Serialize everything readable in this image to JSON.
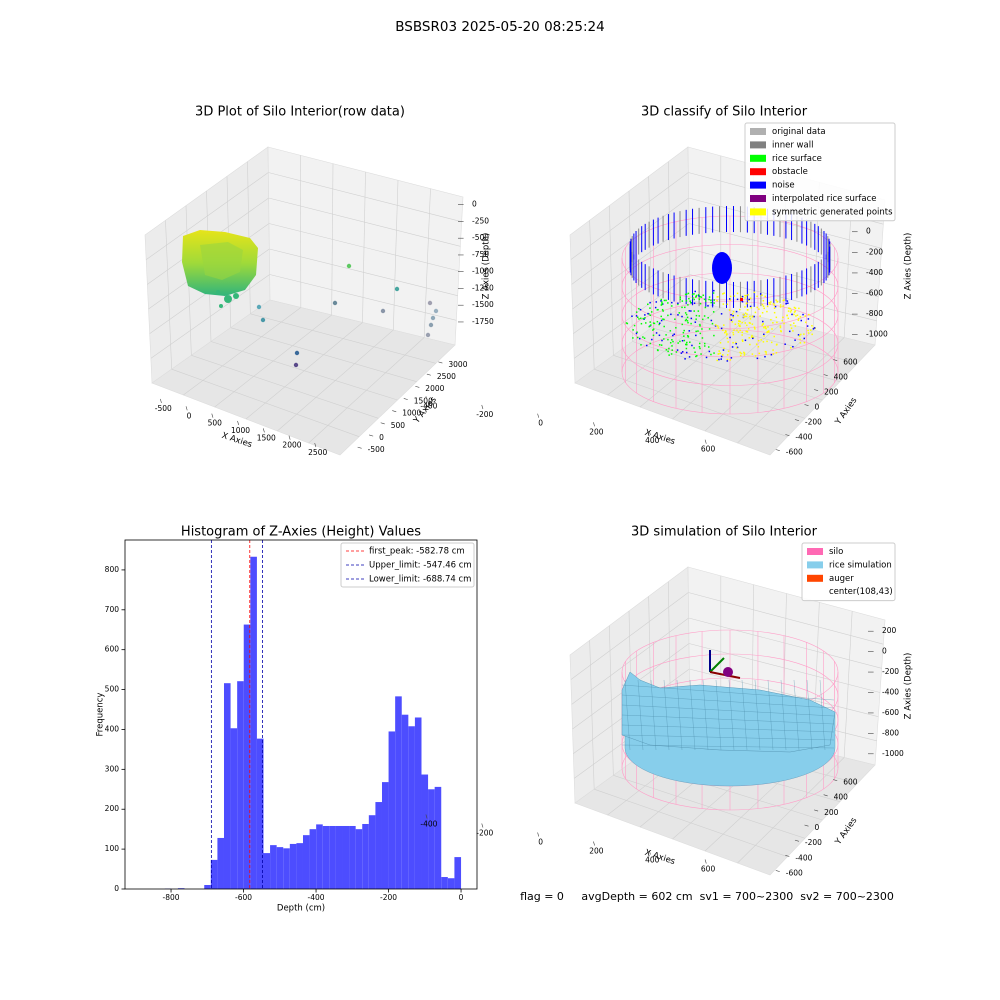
{
  "title": "BSBSR03 2025-05-20 08:25:24",
  "footer": "flag = 0     avgDepth = 602 cm  sv1 = 700~2300  sv2 = 700~2300",
  "chart_data": [
    {
      "type": "scatter3d",
      "title": "3D Plot of Silo Interior(row data)",
      "xlabel": "X Axies",
      "ylabel": "Y Axies",
      "zlabel": "Z Axies (Depth)",
      "xlim": [
        -700,
        2700
      ],
      "ylim": [
        -700,
        3200
      ],
      "zlim": [
        -1900,
        100
      ],
      "xticks": [
        -500,
        0,
        500,
        1000,
        1500,
        2000,
        2500
      ],
      "yticks": [
        -500,
        0,
        500,
        1000,
        1500,
        2000,
        2500,
        3000
      ],
      "zticks": [
        0,
        -250,
        -500,
        -750,
        -1000,
        -1250,
        -1500,
        -1750
      ]
    },
    {
      "type": "scatter3d",
      "title": "3D classify of Silo Interior",
      "xlabel": "X Axies",
      "ylabel": "Y Axies",
      "zlabel": "Z Axies (Depth)",
      "xlim": [
        -500,
        700
      ],
      "ylim": [
        -700,
        700
      ],
      "zlim": [
        -1100,
        250
      ],
      "xticks": [
        -400,
        -200,
        0,
        200,
        400,
        600
      ],
      "yticks": [
        -600,
        -400,
        -200,
        0,
        200,
        400,
        600
      ],
      "zticks": [
        0,
        -200,
        -400,
        -600,
        -800,
        -1000
      ],
      "legend": "upper right",
      "series": [
        {
          "name": "original data",
          "color": "#b0b0b0"
        },
        {
          "name": "inner wall",
          "color": "#808080"
        },
        {
          "name": "rice surface",
          "color": "#00ff00"
        },
        {
          "name": "obstacle",
          "color": "#ff0000"
        },
        {
          "name": "noise",
          "color": "#0000ff"
        },
        {
          "name": "interpolated rice surface",
          "color": "#800080"
        },
        {
          "name": "symmetric generated points",
          "color": "#ffff00"
        }
      ]
    },
    {
      "type": "histogram",
      "title": "Histogram of Z-Axies (Height) Values",
      "xlabel": "Depth (cm)",
      "ylabel": "Frequency",
      "color": "#4d4dff",
      "bins": [
        -890,
        -871.84,
        -853.68,
        -835.52,
        -817.36,
        -799.2,
        -781.04,
        -762.88,
        -744.72,
        -726.56,
        -708.4,
        -690.24,
        -672.08,
        -653.92,
        -635.76,
        -617.6,
        -599.44,
        -581.28,
        -563.12,
        -544.96,
        -526.8,
        -508.64,
        -490.48,
        -472.32,
        -454.16,
        -436,
        -417.84,
        -399.68,
        -381.52,
        -363.36,
        -345.2,
        -327.04,
        -308.88,
        -290.72,
        -272.56,
        -254.4,
        -236.24,
        -218.08,
        -199.92,
        -181.76,
        -163.6,
        -145.44,
        -127.28,
        -109.12,
        -90.96,
        -72.8,
        -54.64,
        -36.48,
        -18.32,
        0
      ],
      "values": [
        0,
        0,
        0,
        0,
        1,
        0,
        2,
        0,
        0,
        0,
        10,
        73,
        128,
        516,
        403,
        521,
        663,
        833,
        377,
        90,
        110,
        105,
        102,
        113,
        115,
        135,
        150,
        162,
        158,
        158,
        158,
        158,
        158,
        150,
        163,
        185,
        218,
        268,
        395,
        483,
        437,
        408,
        430,
        287,
        250,
        256,
        30,
        27,
        80
      ],
      "xlim": [
        -927,
        44
      ],
      "ylim": [
        0,
        875
      ],
      "xticks": [
        -800,
        -600,
        -400,
        -200,
        0
      ],
      "yticks": [
        0,
        100,
        200,
        300,
        400,
        500,
        600,
        700,
        800
      ],
      "legend": "upper right",
      "lines": [
        {
          "name": "first_peak: -582.78 cm",
          "value": -582.78,
          "color": "red"
        },
        {
          "name": "Upper_limit: -547.46 cm",
          "value": -547.46,
          "color": "#0000aa"
        },
        {
          "name": "Lower_limit: -688.74 cm",
          "value": -688.74,
          "color": "#0000aa"
        }
      ]
    },
    {
      "type": "scatter3d",
      "title": "3D simulation of Silo Interior",
      "xlabel": "X Axies",
      "ylabel": "Y Axies",
      "zlabel": "Z Axies (Depth)",
      "xlim": [
        -500,
        700
      ],
      "ylim": [
        -700,
        700
      ],
      "zlim": [
        -1100,
        300
      ],
      "xticks": [
        -400,
        -200,
        0,
        200,
        400,
        600
      ],
      "yticks": [
        -600,
        -400,
        -200,
        0,
        200,
        400,
        600
      ],
      "zticks": [
        200,
        0,
        -200,
        -400,
        -600,
        -800,
        -1000
      ],
      "legend": "upper right",
      "series": [
        {
          "name": "silo",
          "color": "#ff69b4"
        },
        {
          "name": "rice simulation",
          "color": "#87ceeb"
        },
        {
          "name": "auger",
          "color": "#ff4500"
        },
        {
          "name": "center(108,43)"
        }
      ]
    }
  ]
}
